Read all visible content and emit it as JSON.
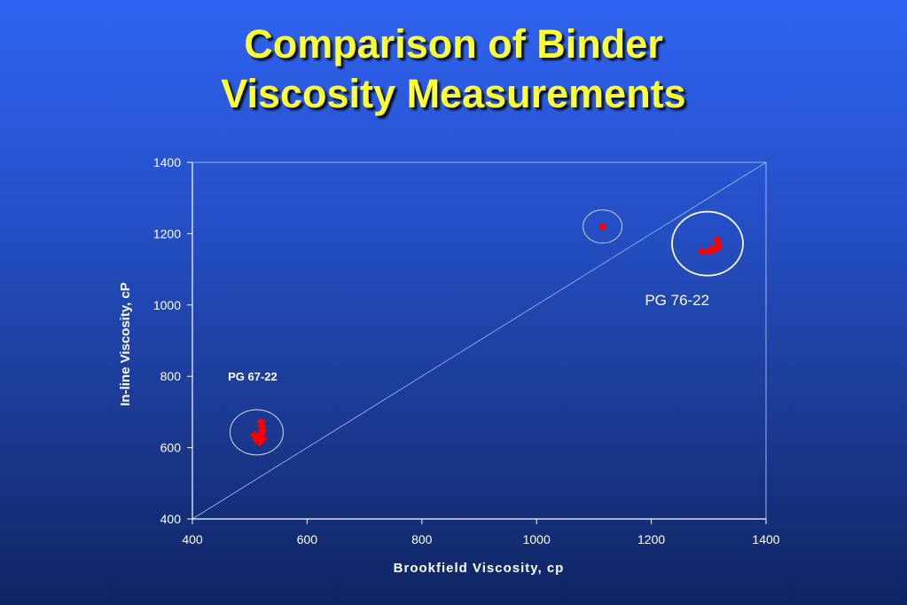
{
  "title": {
    "line1": "Comparison of Binder",
    "line2": "Viscosity Measurements"
  },
  "chart_data": {
    "type": "scatter",
    "title": "Comparison of Binder Viscosity Measurements",
    "xlabel": "Brookfield Viscosity, cp",
    "ylabel": "In-line Viscosity, cP",
    "xlim": [
      400,
      1400
    ],
    "ylim": [
      400,
      1400
    ],
    "x_ticks": [
      400,
      600,
      800,
      1000,
      1200,
      1400
    ],
    "y_ticks": [
      400,
      600,
      800,
      1000,
      1200,
      1400
    ],
    "grid": false,
    "reference_line": {
      "from": [
        400,
        400
      ],
      "to": [
        1400,
        1400
      ]
    },
    "marker_color": "#ff0000",
    "series": [
      {
        "points": [
          [
            520,
            672
          ],
          [
            521,
            660
          ],
          [
            522,
            648
          ],
          [
            520,
            638
          ],
          [
            518,
            630
          ],
          [
            508,
            635
          ],
          [
            512,
            622
          ],
          [
            517,
            615
          ],
          [
            522,
            625
          ],
          [
            514,
            628
          ]
        ]
      },
      {
        "points": [
          [
            1115,
            1220
          ],
          [
            1288,
            1150
          ],
          [
            1300,
            1150
          ],
          [
            1305,
            1158
          ],
          [
            1310,
            1155
          ],
          [
            1316,
            1160
          ],
          [
            1315,
            1182
          ],
          [
            1318,
            1168
          ]
        ]
      }
    ],
    "annotations": [
      {
        "text": "PG 67-22",
        "x": 505,
        "y": 788
      },
      {
        "text": "PG 76-22",
        "x": 1245,
        "y": 1000
      }
    ],
    "highlight_circles": [
      {
        "cx": 512,
        "cy": 643
      },
      {
        "cx": 1115,
        "cy": 1220
      },
      {
        "cx": 1298,
        "cy": 1172
      }
    ]
  }
}
